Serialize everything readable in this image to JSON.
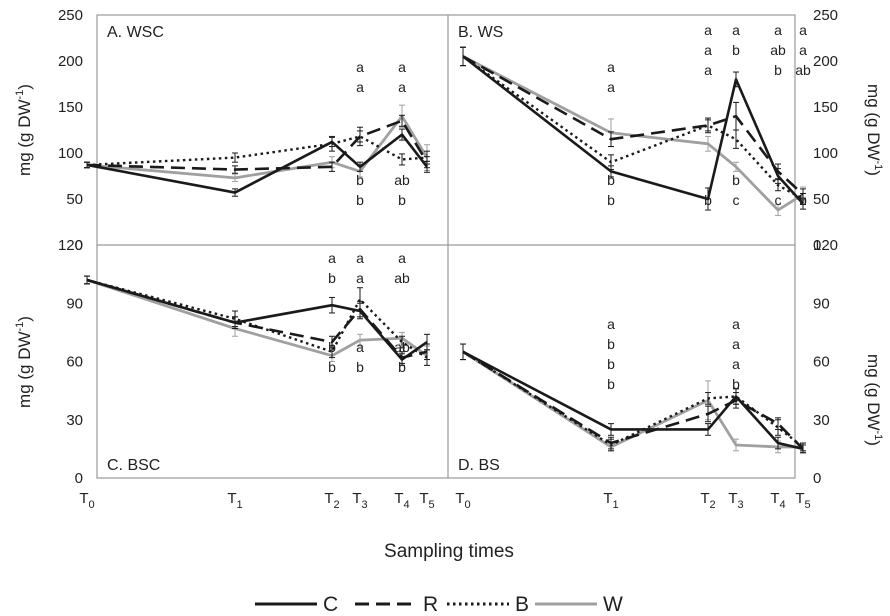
{
  "figure": {
    "xlabel": "Sampling times",
    "ylabel_left": "mg (g DW",
    "ylabel_right": "mg (g DW",
    "ylabel_sup": "-1",
    "ylabel_close": ")"
  },
  "legend": [
    {
      "name": "C",
      "color": "#1a1a1a",
      "dash": "solid"
    },
    {
      "name": "R",
      "color": "#1a1a1a",
      "dash": "long"
    },
    {
      "name": "B",
      "color": "#1a1a1a",
      "dash": "dot"
    },
    {
      "name": "W",
      "color": "#a0a0a0",
      "dash": "solid"
    }
  ],
  "chart_data": [
    {
      "type": "line",
      "title": "A. WSC",
      "x": [
        "T0",
        "T1",
        "T2",
        "T3",
        "T4",
        "T5"
      ],
      "ylim": [
        0,
        250
      ],
      "yticks": [
        0,
        50,
        100,
        150,
        200,
        250
      ],
      "y_axis_side": "left",
      "series": [
        {
          "name": "C",
          "values": [
            87,
            57,
            112,
            85,
            120,
            85
          ],
          "errors": [
            3,
            4,
            5,
            5,
            6,
            6
          ]
        },
        {
          "name": "R",
          "values": [
            87,
            82,
            85,
            118,
            135,
            90
          ],
          "errors": [
            3,
            4,
            5,
            6,
            6,
            6
          ]
        },
        {
          "name": "B",
          "values": [
            87,
            95,
            110,
            118,
            93,
            95
          ],
          "errors": [
            3,
            5,
            8,
            10,
            6,
            7
          ]
        },
        {
          "name": "W",
          "values": [
            87,
            73,
            90,
            80,
            140,
            95
          ],
          "errors": [
            3,
            4,
            6,
            6,
            12,
            14
          ]
        }
      ],
      "annotations": [
        {
          "x": "T3",
          "above": [
            "a",
            "a"
          ],
          "below": [
            "b",
            "b"
          ]
        },
        {
          "x": "T4",
          "above": [
            "a",
            "a"
          ],
          "below": [
            "ab",
            "b"
          ]
        }
      ]
    },
    {
      "type": "line",
      "title": "B. WS",
      "x": [
        "T0",
        "T1",
        "T2",
        "T3",
        "T4",
        "T5"
      ],
      "ylim": [
        0,
        250
      ],
      "yticks": [
        0,
        50,
        100,
        150,
        200,
        250
      ],
      "y_axis_side": "right",
      "series": [
        {
          "name": "C",
          "values": [
            205,
            80,
            50,
            180,
            75,
            45
          ],
          "errors": [
            10,
            6,
            12,
            8,
            8,
            6
          ]
        },
        {
          "name": "R",
          "values": [
            205,
            115,
            130,
            140,
            80,
            55
          ],
          "errors": [
            10,
            8,
            8,
            15,
            8,
            6
          ]
        },
        {
          "name": "B",
          "values": [
            205,
            90,
            130,
            115,
            65,
            50
          ],
          "errors": [
            10,
            8,
            6,
            10,
            6,
            6
          ]
        },
        {
          "name": "W",
          "values": [
            205,
            122,
            110,
            85,
            38,
            55
          ],
          "errors": [
            10,
            15,
            8,
            5,
            6,
            8
          ]
        }
      ],
      "annotations": [
        {
          "x": "T1",
          "above": [
            "a",
            "a"
          ],
          "below": [
            "b",
            "b"
          ]
        },
        {
          "x": "T2",
          "above": [
            "a",
            "a",
            "a"
          ],
          "below": [
            "b"
          ]
        },
        {
          "x": "T3",
          "above": [
            "a",
            "b"
          ],
          "below": [
            "b",
            "c"
          ]
        },
        {
          "x": "T4",
          "above": [
            "a",
            "ab",
            "b"
          ],
          "below": [
            "c"
          ]
        },
        {
          "x": "T5",
          "above": [
            "a",
            "a",
            "ab"
          ],
          "below": [
            "b"
          ]
        }
      ]
    },
    {
      "type": "line",
      "title": "C. BSC",
      "x": [
        "T0",
        "T1",
        "T2",
        "T3",
        "T4",
        "T5"
      ],
      "ylim": [
        0,
        120
      ],
      "yticks": [
        0,
        30,
        60,
        90,
        120
      ],
      "y_axis_side": "left",
      "series": [
        {
          "name": "C",
          "values": [
            102,
            80,
            89,
            86,
            61,
            70
          ],
          "errors": [
            2,
            3,
            4,
            4,
            3,
            4
          ]
        },
        {
          "name": "R",
          "values": [
            102,
            80,
            70,
            87,
            62,
            65
          ],
          "errors": [
            2,
            3,
            3,
            4,
            3,
            4
          ]
        },
        {
          "name": "B",
          "values": [
            102,
            82,
            65,
            92,
            70,
            62
          ],
          "errors": [
            2,
            4,
            3,
            6,
            3,
            4
          ]
        },
        {
          "name": "W",
          "values": [
            102,
            77,
            63,
            71,
            72,
            63
          ],
          "errors": [
            2,
            4,
            3,
            3,
            3,
            5
          ]
        }
      ],
      "annotations": [
        {
          "x": "T2",
          "above": [
            "a",
            "b"
          ],
          "below": [
            "b",
            "b"
          ]
        },
        {
          "x": "T3",
          "above": [
            "a",
            "a"
          ],
          "below": [
            "a",
            "b"
          ]
        },
        {
          "x": "T4",
          "above": [
            "a",
            "ab"
          ],
          "below": [
            "ab",
            "b"
          ]
        }
      ]
    },
    {
      "type": "line",
      "title": "D. BS",
      "x": [
        "T0",
        "T1",
        "T2",
        "T3",
        "T4",
        "T5"
      ],
      "ylim": [
        0,
        120
      ],
      "yticks": [
        0,
        30,
        60,
        90,
        120
      ],
      "y_axis_side": "right",
      "series": [
        {
          "name": "C",
          "values": [
            65,
            25,
            25,
            42,
            18,
            15
          ],
          "errors": [
            4,
            3,
            3,
            4,
            3,
            2
          ]
        },
        {
          "name": "R",
          "values": [
            65,
            18,
            33,
            40,
            28,
            15
          ],
          "errors": [
            4,
            3,
            4,
            4,
            3,
            2
          ]
        },
        {
          "name": "B",
          "values": [
            65,
            17,
            41,
            42,
            26,
            16
          ],
          "errors": [
            4,
            3,
            3,
            4,
            4,
            2
          ]
        },
        {
          "name": "W",
          "values": [
            65,
            16,
            40,
            17,
            16,
            16
          ],
          "errors": [
            4,
            2,
            10,
            3,
            3,
            2
          ]
        }
      ],
      "annotations": [
        {
          "x": "T1",
          "above": [
            "a",
            "b",
            "b",
            "b"
          ],
          "below": []
        },
        {
          "x": "T3",
          "above": [
            "a",
            "a",
            "a",
            "b"
          ],
          "below": []
        }
      ]
    }
  ]
}
